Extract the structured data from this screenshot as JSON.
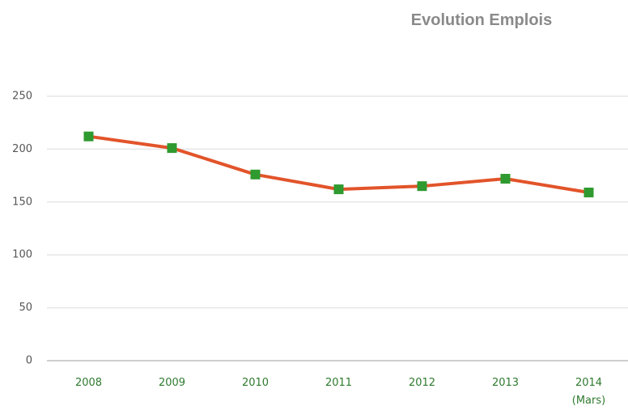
{
  "chart_data": {
    "type": "line",
    "title": "Evolution Emplois",
    "categories": [
      "2008",
      "2009",
      "2010",
      "2011",
      "2012",
      "2013",
      "2014 (Mars)"
    ],
    "values": [
      212,
      201,
      176,
      162,
      165,
      172,
      159
    ],
    "color": "#e2542a",
    "marker_color": "#2f9a2f",
    "ylim": [
      0,
      250
    ],
    "yticks": [
      0,
      50,
      100,
      150,
      200,
      250
    ],
    "grid": true
  }
}
